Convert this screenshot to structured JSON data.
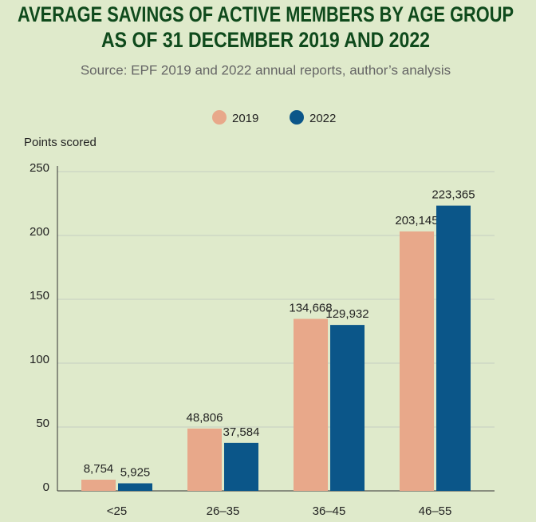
{
  "chart_data": {
    "type": "bar",
    "title": [
      "AVERAGE SAVINGS OF ACTIVE MEMBERS BY AGE GROUP",
      "AS OF 31 DECEMBER 2019 AND 2022"
    ],
    "subtitle": "Source: EPF 2019 and 2022 annual reports, author’s analysis",
    "y_label": "Points scored",
    "categories": [
      "<25",
      "26–35",
      "36–45",
      "46–55"
    ],
    "series": [
      {
        "name": "2019",
        "color": "#e8a88a",
        "values": [
          8.754,
          48.806,
          134.668,
          203.145
        ],
        "value_labels": [
          "8,754",
          "48,806",
          "134,668",
          "203,145"
        ]
      },
      {
        "name": "2022",
        "color": "#0b5689",
        "values": [
          5.925,
          37.584,
          129.932,
          223.365
        ],
        "value_labels": [
          "5,925",
          "37,584",
          "129,932",
          "223,365"
        ]
      }
    ],
    "ylim": [
      0,
      250
    ],
    "yticks": [
      0,
      50,
      100,
      150,
      200,
      250
    ],
    "grid": true,
    "legend": "top"
  }
}
